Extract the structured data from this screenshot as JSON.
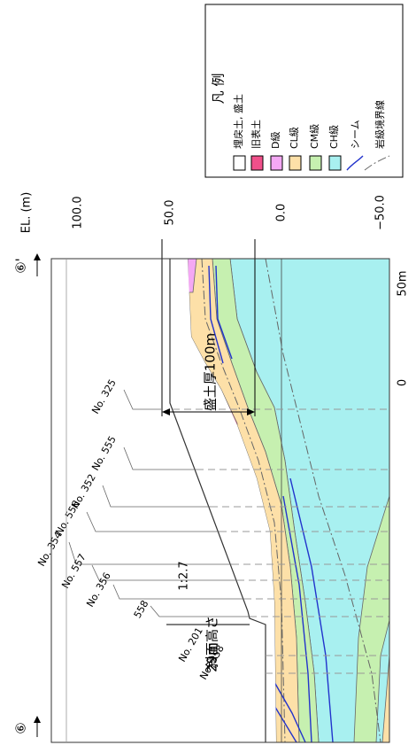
{
  "header": {
    "section_start": "⑥",
    "section_end": "⑥'",
    "elevation_label": "EL. (m)"
  },
  "elevation_ticks": [
    "100.0",
    "50.0",
    "0.0",
    "−50.0"
  ],
  "scale": {
    "start": "0",
    "end": "50m"
  },
  "annotations": {
    "fill_thickness": "盛土厚100m",
    "slope_height": "斜面高さ",
    "slope_height_value": "29m",
    "slope_ratio": "1:2.7"
  },
  "boreholes": [
    "No. 325",
    "No. 555",
    "No. 352",
    "No. 556",
    "No. 354",
    "No. 557",
    "No. 356",
    "558",
    "No. 201",
    "No. 358"
  ],
  "legend": {
    "title": "凡 例",
    "items": [
      "埋戻土, 盛土",
      "旧表土",
      "D級",
      "CL級",
      "CM級",
      "CH級",
      "シーム",
      "岩級境界線"
    ]
  }
}
